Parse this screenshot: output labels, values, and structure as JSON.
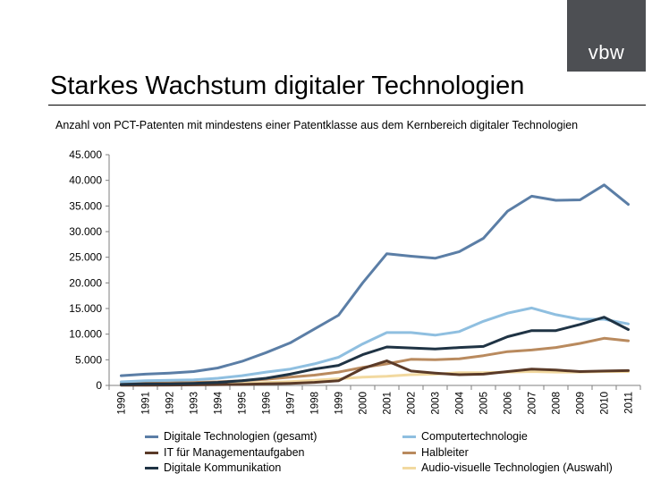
{
  "header": {
    "logo_text": "vbw",
    "title": "Starkes Wachstum digitaler Technologien",
    "subtitle": "Anzahl von PCT-Patenten mit mindestens einer Patentklasse aus dem Kernbereich digitaler Technologien"
  },
  "chart_data": {
    "type": "line",
    "title": "Starkes Wachstum digitaler Technologien",
    "subtitle": "Anzahl von PCT-Patenten mit mindestens einer Patentklasse aus dem Kernbereich digitaler Technologien",
    "xlabel": "",
    "ylabel": "",
    "ylim": [
      0,
      45000
    ],
    "yticks": [
      "0",
      "5.000",
      "10.000",
      "15.000",
      "20.000",
      "25.000",
      "30.000",
      "35.000",
      "40.000",
      "45.000"
    ],
    "ytick_values": [
      0,
      5000,
      10000,
      15000,
      20000,
      25000,
      30000,
      35000,
      40000,
      45000
    ],
    "grid": false,
    "legend_position": "bottom",
    "categories": [
      "1990",
      "1991",
      "1992",
      "1993",
      "1994",
      "1995",
      "1996",
      "1997",
      "1998",
      "1999",
      "2000",
      "2001",
      "2002",
      "2003",
      "2004",
      "2005",
      "2006",
      "2007",
      "2008",
      "2009",
      "2010",
      "2011"
    ],
    "series": [
      {
        "name": "Digitale Technologien (gesamt)",
        "color": "#5b7ea6",
        "values": [
          1900,
          2200,
          2400,
          2700,
          3400,
          4700,
          6400,
          8300,
          11000,
          13700,
          20000,
          25700,
          25200,
          24800,
          26100,
          28700,
          34000,
          36900,
          36100,
          36200,
          39100,
          35300
        ]
      },
      {
        "name": "Computertechnologie",
        "color": "#8fbfe0",
        "values": [
          700,
          900,
          1000,
          1100,
          1400,
          1900,
          2600,
          3200,
          4200,
          5500,
          8100,
          10300,
          10300,
          9800,
          10500,
          12500,
          14100,
          15100,
          13800,
          12900,
          12900,
          12000
        ]
      },
      {
        "name": "IT für Managementaufgaben",
        "color": "#5a3a28",
        "values": [
          50,
          60,
          70,
          100,
          150,
          200,
          300,
          400,
          600,
          900,
          3300,
          4800,
          2800,
          2400,
          2100,
          2200,
          2700,
          3200,
          3000,
          2700,
          2800,
          2900
        ]
      },
      {
        "name": "Halbleiter",
        "color": "#b98a5e",
        "values": [
          500,
          500,
          500,
          600,
          700,
          900,
          1200,
          1600,
          2000,
          2600,
          3500,
          4200,
          5100,
          5000,
          5200,
          5800,
          6600,
          6900,
          7400,
          8200,
          9200,
          8700
        ]
      },
      {
        "name": "Digitale Kommunikation",
        "color": "#1f3344",
        "values": [
          200,
          300,
          300,
          400,
          600,
          900,
          1400,
          2200,
          3200,
          3900,
          6000,
          7500,
          7300,
          7100,
          7400,
          7600,
          9500,
          10700,
          10700,
          11900,
          13300,
          10900
        ]
      },
      {
        "name": "Audio-visuelle Technologien (Auswahl)",
        "color": "#f2d9a0",
        "values": [
          100,
          150,
          200,
          250,
          300,
          400,
          550,
          750,
          1000,
          1300,
          1600,
          1800,
          2100,
          2200,
          2500,
          2500,
          2600,
          2700,
          2600,
          2600,
          2700,
          2700
        ]
      }
    ]
  }
}
